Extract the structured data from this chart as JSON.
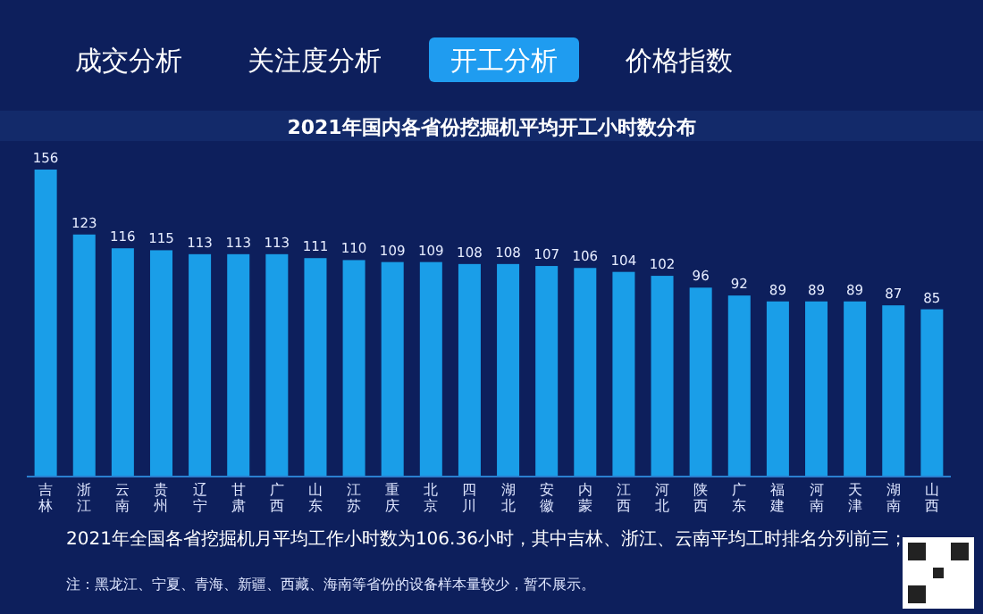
{
  "chart_data": {
    "type": "bar",
    "title": "2021年国内各省份挖掘机平均开工小时数分布",
    "categories": [
      "吉林",
      "浙江",
      "云南",
      "贵州",
      "辽宁",
      "甘肃",
      "广西",
      "山东",
      "江苏",
      "重庆",
      "北京",
      "四川",
      "湖北",
      "安徽",
      "内蒙",
      "江西",
      "河北",
      "陕西",
      "广东",
      "福建",
      "河南",
      "天津",
      "湖南",
      "山西"
    ],
    "values": [
      156,
      123,
      116,
      115,
      113,
      113,
      113,
      111,
      110,
      109,
      109,
      108,
      108,
      107,
      106,
      104,
      102,
      96,
      92,
      89,
      89,
      89,
      87,
      85
    ],
    "color": "#1a9ee8",
    "data_labels": true,
    "annotations": [
      "成交分析",
      "关注度分析",
      "开工分析",
      "价格指数",
      "2021年全国各省挖掘机月平均工作小时数为106.36小时，其中吉林、浙江、云南平均工时排名分列前三；",
      "注：黑龙江、宁夏、青海、新疆、西藏、海南等省份的设备样本量较少，暂不展示。"
    ]
  }
}
